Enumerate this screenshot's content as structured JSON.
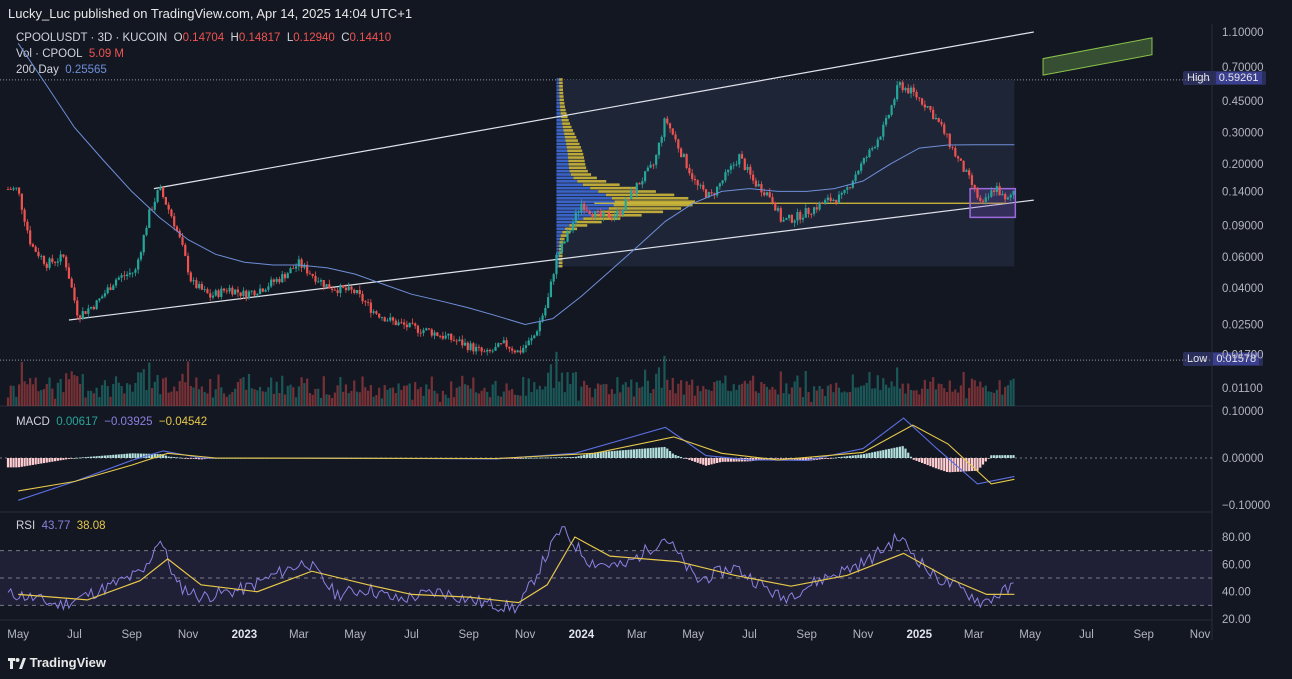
{
  "publisher_line": "Lucky_Luc published on TradingView.com, Apr 14, 2025 14:04 UTC+1",
  "legend": {
    "symbol": "CPOOLUSDT · 3D · KUCOIN",
    "o_label": "O",
    "o": "0.14704",
    "h_label": "H",
    "h": "0.14817",
    "l_label": "L",
    "l": "0.12940",
    "c_label": "C",
    "c": "0.14410",
    "vol_label": "Vol · CPOOL",
    "vol": "5.09 M",
    "ma_label": "200 Day",
    "ma": "0.25565"
  },
  "macd_legend": {
    "label": "MACD",
    "hist": "0.00617",
    "macd": "−0.03925",
    "signal": "−0.04542"
  },
  "rsi_legend": {
    "label": "RSI",
    "rsi": "43.77",
    "ma": "38.08"
  },
  "brand": "TradingView",
  "colors": {
    "background": "#131722",
    "up": "#26a69a",
    "down": "#ef5350",
    "ma": "#6f8fd8",
    "signal": "#e6c84a",
    "rsi": "#8b80e0",
    "profile_up": "#3f6fe0",
    "profile_down": "#d9c13a"
  },
  "chart_data": {
    "type": "candlestick",
    "symbol": "CPOOLUSDT",
    "interval": "3D",
    "exchange": "KUCOIN",
    "price_scale": "log",
    "price_axis_ticks": [
      "1.10000",
      "0.70000",
      "0.45000",
      "0.30000",
      "0.20000",
      "0.14000",
      "0.09000",
      "0.06000",
      "0.04000",
      "0.02500",
      "0.01700",
      "0.01100"
    ],
    "high_label": "High",
    "high_value": "0.59261",
    "low_label": "Low",
    "low_value": "0.01578",
    "x_tick_labels": [
      "May",
      "Jul",
      "Sep",
      "Nov",
      "2023",
      "Mar",
      "May",
      "Jul",
      "Sep",
      "Nov",
      "2024",
      "Mar",
      "May",
      "Jul",
      "Sep",
      "Nov",
      "2025",
      "Mar",
      "May",
      "Jul",
      "Sep",
      "Nov"
    ],
    "price_path": [
      [
        "2022-05-01",
        0.14
      ],
      [
        "2022-05-15",
        0.07
      ],
      [
        "2022-06-01",
        0.055
      ],
      [
        "2022-06-20",
        0.06
      ],
      [
        "2022-07-05",
        0.028
      ],
      [
        "2022-07-25",
        0.033
      ],
      [
        "2022-08-15",
        0.045
      ],
      [
        "2022-09-05",
        0.05
      ],
      [
        "2022-09-20",
        0.105
      ],
      [
        "2022-10-01",
        0.145
      ],
      [
        "2022-10-15",
        0.1
      ],
      [
        "2022-10-25",
        0.07
      ],
      [
        "2022-11-05",
        0.043
      ],
      [
        "2022-11-25",
        0.036
      ],
      [
        "2022-12-15",
        0.04
      ],
      [
        "2023-01-01",
        0.037
      ],
      [
        "2023-01-20",
        0.04
      ],
      [
        "2023-02-10",
        0.046
      ],
      [
        "2023-03-01",
        0.055
      ],
      [
        "2023-03-15",
        0.048
      ],
      [
        "2023-04-01",
        0.041
      ],
      [
        "2023-05-01",
        0.038
      ],
      [
        "2023-05-20",
        0.03
      ],
      [
        "2023-06-10",
        0.026
      ],
      [
        "2023-07-01",
        0.024
      ],
      [
        "2023-07-20",
        0.023
      ],
      [
        "2023-08-10",
        0.021
      ],
      [
        "2023-09-01",
        0.019
      ],
      [
        "2023-09-20",
        0.017
      ],
      [
        "2023-10-10",
        0.0195
      ],
      [
        "2023-10-25",
        0.0175
      ],
      [
        "2023-11-10",
        0.021
      ],
      [
        "2023-11-25",
        0.033
      ],
      [
        "2023-12-05",
        0.06
      ],
      [
        "2023-12-15",
        0.075
      ],
      [
        "2024-01-01",
        0.12
      ],
      [
        "2024-01-20",
        0.1
      ],
      [
        "2024-02-10",
        0.105
      ],
      [
        "2024-03-01",
        0.15
      ],
      [
        "2024-03-20",
        0.2
      ],
      [
        "2024-04-01",
        0.36
      ],
      [
        "2024-04-20",
        0.22
      ],
      [
        "2024-05-05",
        0.15
      ],
      [
        "2024-05-20",
        0.13
      ],
      [
        "2024-06-05",
        0.17
      ],
      [
        "2024-06-20",
        0.22
      ],
      [
        "2024-07-05",
        0.16
      ],
      [
        "2024-07-25",
        0.13
      ],
      [
        "2024-08-05",
        0.095
      ],
      [
        "2024-08-20",
        0.1
      ],
      [
        "2024-09-05",
        0.11
      ],
      [
        "2024-09-25",
        0.125
      ],
      [
        "2024-10-10",
        0.13
      ],
      [
        "2024-10-25",
        0.18
      ],
      [
        "2024-11-10",
        0.24
      ],
      [
        "2024-11-25",
        0.33
      ],
      [
        "2024-12-10",
        0.56
      ],
      [
        "2024-12-25",
        0.5
      ],
      [
        "2025-01-10",
        0.42
      ],
      [
        "2025-01-25",
        0.32
      ],
      [
        "2025-02-10",
        0.22
      ],
      [
        "2025-02-25",
        0.16
      ],
      [
        "2025-03-10",
        0.115
      ],
      [
        "2025-03-25",
        0.15
      ],
      [
        "2025-04-05",
        0.12
      ],
      [
        "2025-04-14",
        0.1441
      ]
    ],
    "moving_average_200d": [
      [
        "2022-05-01",
        0.95
      ],
      [
        "2022-06-01",
        0.55
      ],
      [
        "2022-07-01",
        0.32
      ],
      [
        "2022-08-01",
        0.21
      ],
      [
        "2022-09-01",
        0.14
      ],
      [
        "2022-10-01",
        0.1
      ],
      [
        "2022-11-01",
        0.075
      ],
      [
        "2022-12-01",
        0.062
      ],
      [
        "2023-01-01",
        0.056
      ],
      [
        "2023-02-01",
        0.054
      ],
      [
        "2023-03-01",
        0.054
      ],
      [
        "2023-04-01",
        0.052
      ],
      [
        "2023-05-01",
        0.048
      ],
      [
        "2023-06-01",
        0.042
      ],
      [
        "2023-07-01",
        0.037
      ],
      [
        "2023-08-01",
        0.034
      ],
      [
        "2023-09-01",
        0.031
      ],
      [
        "2023-10-01",
        0.028
      ],
      [
        "2023-11-01",
        0.025
      ],
      [
        "2023-12-01",
        0.027
      ],
      [
        "2024-01-01",
        0.036
      ],
      [
        "2024-02-01",
        0.05
      ],
      [
        "2024-03-01",
        0.068
      ],
      [
        "2024-04-01",
        0.095
      ],
      [
        "2024-05-01",
        0.12
      ],
      [
        "2024-06-01",
        0.14
      ],
      [
        "2024-07-01",
        0.145
      ],
      [
        "2024-08-01",
        0.14
      ],
      [
        "2024-09-01",
        0.14
      ],
      [
        "2024-10-01",
        0.145
      ],
      [
        "2024-11-01",
        0.16
      ],
      [
        "2024-12-01",
        0.2
      ],
      [
        "2025-01-01",
        0.245
      ],
      [
        "2025-02-01",
        0.255
      ],
      [
        "2025-03-01",
        0.256
      ],
      [
        "2025-04-14",
        0.25565
      ]
    ],
    "channel": {
      "upper": [
        [
          "2022-09-25",
          0.145
        ],
        [
          "2025-05-05",
          1.1
        ]
      ],
      "lower": [
        [
          "2022-06-25",
          0.0265
        ],
        [
          "2025-05-05",
          0.125
        ]
      ]
    },
    "horizontal_level": 0.12,
    "volume_profile_range": [
      "2023-12-05",
      "2025-04-14"
    ],
    "macd": {
      "axis_ticks": [
        "0.10000",
        "0.00000",
        "−0.10000"
      ],
      "macd_path": [
        [
          "2022-05-01",
          -0.09
        ],
        [
          "2022-07-01",
          -0.05
        ],
        [
          "2022-09-01",
          -0.005
        ],
        [
          "2022-10-05",
          0.015
        ],
        [
          "2022-11-15",
          0.0
        ],
        [
          "2023-03-01",
          0.0
        ],
        [
          "2023-10-01",
          -0.002
        ],
        [
          "2023-12-25",
          0.01
        ],
        [
          "2024-04-01",
          0.065
        ],
        [
          "2024-05-15",
          0.005
        ],
        [
          "2024-07-01",
          -0.004
        ],
        [
          "2024-09-01",
          -0.005
        ],
        [
          "2024-11-01",
          0.02
        ],
        [
          "2024-12-15",
          0.085
        ],
        [
          "2025-01-20",
          0.02
        ],
        [
          "2025-03-05",
          -0.055
        ],
        [
          "2025-04-14",
          -0.03925
        ]
      ],
      "signal_path": [
        [
          "2022-05-01",
          -0.07
        ],
        [
          "2022-07-01",
          -0.05
        ],
        [
          "2022-09-01",
          -0.015
        ],
        [
          "2022-10-10",
          0.01
        ],
        [
          "2022-12-01",
          0.0
        ],
        [
          "2023-10-01",
          -0.001
        ],
        [
          "2024-01-15",
          0.01
        ],
        [
          "2024-04-10",
          0.045
        ],
        [
          "2024-06-01",
          0.01
        ],
        [
          "2024-08-01",
          -0.004
        ],
        [
          "2024-11-01",
          0.012
        ],
        [
          "2024-12-25",
          0.07
        ],
        [
          "2025-02-01",
          0.03
        ],
        [
          "2025-03-20",
          -0.055
        ],
        [
          "2025-04-14",
          -0.04542
        ]
      ]
    },
    "rsi": {
      "axis_ticks": [
        "80.00",
        "60.00",
        "40.00",
        "20.00"
      ],
      "bands": [
        70,
        50,
        30
      ],
      "rsi_path": [
        [
          "2022-05-01",
          38
        ],
        [
          "2022-06-15",
          30
        ],
        [
          "2022-08-01",
          42
        ],
        [
          "2022-09-15",
          55
        ],
        [
          "2022-10-01",
          80
        ],
        [
          "2022-10-20",
          45
        ],
        [
          "2022-11-15",
          36
        ],
        [
          "2023-01-01",
          42
        ],
        [
          "2023-02-15",
          56
        ],
        [
          "2023-03-10",
          62
        ],
        [
          "2023-04-10",
          38
        ],
        [
          "2023-05-15",
          42
        ],
        [
          "2023-06-15",
          34
        ],
        [
          "2023-08-01",
          40
        ],
        [
          "2023-09-15",
          32
        ],
        [
          "2023-10-25",
          28
        ],
        [
          "2023-11-15",
          55
        ],
        [
          "2023-12-10",
          86
        ],
        [
          "2024-01-10",
          62
        ],
        [
          "2024-02-15",
          58
        ],
        [
          "2024-04-01",
          80
        ],
        [
          "2024-05-05",
          48
        ],
        [
          "2024-06-15",
          58
        ],
        [
          "2024-08-05",
          35
        ],
        [
          "2024-09-20",
          50
        ],
        [
          "2024-11-05",
          62
        ],
        [
          "2024-12-10",
          80
        ],
        [
          "2025-01-15",
          52
        ],
        [
          "2025-02-20",
          40
        ],
        [
          "2025-03-10",
          32
        ],
        [
          "2025-04-14",
          43.77
        ]
      ],
      "ma_path": [
        [
          "2022-05-01",
          38
        ],
        [
          "2022-07-15",
          34
        ],
        [
          "2022-09-10",
          48
        ],
        [
          "2022-10-10",
          64
        ],
        [
          "2022-11-15",
          45
        ],
        [
          "2023-01-15",
          40
        ],
        [
          "2023-03-15",
          55
        ],
        [
          "2023-05-15",
          45
        ],
        [
          "2023-07-01",
          38
        ],
        [
          "2023-09-01",
          36
        ],
        [
          "2023-10-25",
          32
        ],
        [
          "2023-11-25",
          45
        ],
        [
          "2023-12-25",
          80
        ],
        [
          "2024-02-01",
          66
        ],
        [
          "2024-04-15",
          62
        ],
        [
          "2024-06-15",
          52
        ],
        [
          "2024-08-15",
          44
        ],
        [
          "2024-10-15",
          52
        ],
        [
          "2024-12-15",
          68
        ],
        [
          "2025-02-01",
          50
        ],
        [
          "2025-03-15",
          38
        ],
        [
          "2025-04-14",
          38.08
        ]
      ]
    }
  }
}
